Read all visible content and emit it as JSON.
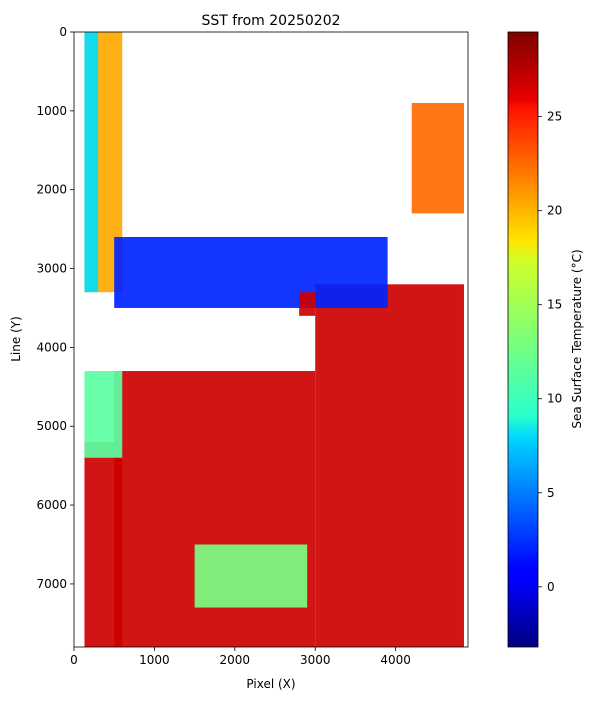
{
  "chart_data": {
    "type": "heatmap",
    "title": "SST from 20250202",
    "xlabel": "Pixel (X)",
    "ylabel": "Line (Y)",
    "xlim": [
      0,
      4900
    ],
    "ylim": [
      7800,
      0
    ],
    "x_ticks": [
      0,
      1000,
      2000,
      3000,
      4000
    ],
    "y_ticks": [
      0,
      1000,
      2000,
      3000,
      4000,
      5000,
      6000,
      7000
    ],
    "colorbar": {
      "label": "Sea Surface Temperature (°C)",
      "colormap": "jet",
      "range": [
        -3.2,
        29.5
      ],
      "ticks": [
        0,
        5,
        10,
        15,
        20,
        25
      ]
    },
    "data_extent_x": [
      130,
      4850
    ],
    "regions": [
      {
        "y0": 0,
        "y1": 3300,
        "x0": 130,
        "x1": 600,
        "value": 20
      },
      {
        "y0": 0,
        "y1": 3300,
        "x0": 130,
        "x1": 300,
        "value": 8
      },
      {
        "y0": 900,
        "y1": 2300,
        "x0": 4200,
        "x1": 4850,
        "value": 22
      },
      {
        "y0": 3200,
        "y1": 7800,
        "x0": 3000,
        "x1": 4850,
        "value": 27
      },
      {
        "y0": 4300,
        "y1": 7800,
        "x0": 500,
        "x1": 3000,
        "value": 27
      },
      {
        "y0": 5200,
        "y1": 7800,
        "x0": 130,
        "x1": 600,
        "value": 27
      },
      {
        "y0": 4300,
        "y1": 5400,
        "x0": 130,
        "x1": 600,
        "value": 12
      },
      {
        "y0": 6500,
        "y1": 7300,
        "x0": 1500,
        "x1": 2900,
        "value": 13
      },
      {
        "y0": 2600,
        "y1": 3500,
        "x0": 500,
        "x1": 3900,
        "value": 2
      },
      {
        "y0": 3300,
        "y1": 3600,
        "x0": 2800,
        "x1": 3000,
        "value": 27
      }
    ]
  }
}
